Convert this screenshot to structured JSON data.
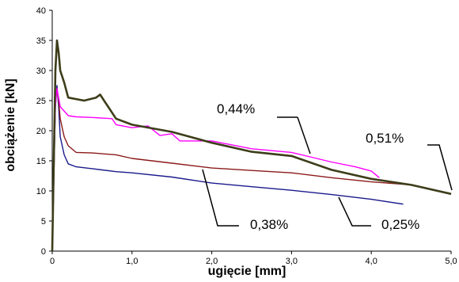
{
  "chart_data": {
    "type": "line",
    "title": "",
    "xlabel": "ugięcie [mm]",
    "ylabel": "obciążenie [kN]",
    "xlim": [
      0,
      5
    ],
    "ylim": [
      0,
      40
    ],
    "x_ticks": [
      "0",
      "1,0",
      "2,0",
      "3,0",
      "4,0",
      "5,0"
    ],
    "y_ticks": [
      "0",
      "5",
      "10",
      "15",
      "20",
      "25",
      "30",
      "35",
      "40"
    ],
    "grid": false,
    "legend": "none",
    "series": [
      {
        "name": "0,25%",
        "color": "#1a1a8c",
        "points": [
          [
            0,
            0
          ],
          [
            0.02,
            12
          ],
          [
            0.04,
            24
          ],
          [
            0.06,
            27.5
          ],
          [
            0.08,
            24
          ],
          [
            0.1,
            19
          ],
          [
            0.15,
            16
          ],
          [
            0.2,
            14.5
          ],
          [
            0.3,
            14
          ],
          [
            0.5,
            13.7
          ],
          [
            0.8,
            13.2
          ],
          [
            1.0,
            13
          ],
          [
            1.5,
            12.3
          ],
          [
            2.0,
            11.3
          ],
          [
            2.5,
            10.7
          ],
          [
            3.0,
            10.1
          ],
          [
            3.5,
            9.4
          ],
          [
            4.0,
            8.6
          ],
          [
            4.4,
            7.8
          ]
        ]
      },
      {
        "name": "0,38%",
        "color": "#8b1a1a",
        "points": [
          [
            0,
            0
          ],
          [
            0.02,
            15
          ],
          [
            0.04,
            25
          ],
          [
            0.06,
            27
          ],
          [
            0.08,
            25
          ],
          [
            0.1,
            22
          ],
          [
            0.15,
            19
          ],
          [
            0.2,
            17.5
          ],
          [
            0.3,
            16.4
          ],
          [
            0.5,
            16.3
          ],
          [
            0.8,
            16
          ],
          [
            1.0,
            15.4
          ],
          [
            1.5,
            14.6
          ],
          [
            2.0,
            13.8
          ],
          [
            2.5,
            13.4
          ],
          [
            3.0,
            13
          ],
          [
            3.5,
            12.2
          ],
          [
            4.0,
            11.5
          ],
          [
            4.5,
            11
          ],
          [
            5.0,
            9.5
          ]
        ]
      },
      {
        "name": "0,44%",
        "color": "#ff00ff",
        "points": [
          [
            0,
            0
          ],
          [
            0.02,
            14
          ],
          [
            0.04,
            24
          ],
          [
            0.06,
            27
          ],
          [
            0.1,
            24
          ],
          [
            0.2,
            22.5
          ],
          [
            0.3,
            22.3
          ],
          [
            0.5,
            22.2
          ],
          [
            0.75,
            22
          ],
          [
            0.8,
            21
          ],
          [
            1.0,
            20.5
          ],
          [
            1.2,
            20.8
          ],
          [
            1.35,
            19.2
          ],
          [
            1.5,
            19.5
          ],
          [
            1.6,
            18.3
          ],
          [
            2.0,
            18.3
          ],
          [
            2.5,
            17
          ],
          [
            3.0,
            16.4
          ],
          [
            3.5,
            14.8
          ],
          [
            3.8,
            14
          ],
          [
            4.0,
            13.3
          ],
          [
            4.1,
            12.2
          ]
        ]
      },
      {
        "name": "0,51%",
        "color": "#3d3d1a",
        "points": [
          [
            0,
            0
          ],
          [
            0.02,
            15
          ],
          [
            0.04,
            30
          ],
          [
            0.06,
            35
          ],
          [
            0.08,
            33
          ],
          [
            0.1,
            30
          ],
          [
            0.15,
            28
          ],
          [
            0.2,
            25.5
          ],
          [
            0.4,
            25
          ],
          [
            0.55,
            25.5
          ],
          [
            0.6,
            26
          ],
          [
            0.65,
            25
          ],
          [
            0.7,
            24
          ],
          [
            0.8,
            22
          ],
          [
            1.0,
            21
          ],
          [
            1.5,
            19.8
          ],
          [
            2.0,
            18
          ],
          [
            2.5,
            16.5
          ],
          [
            3.0,
            15.8
          ],
          [
            3.5,
            13.5
          ],
          [
            4.0,
            12
          ],
          [
            4.5,
            11
          ],
          [
            5.0,
            9.5
          ]
        ]
      }
    ],
    "annotations": [
      "0,44%",
      "0,51%",
      "0,38%",
      "0,25%"
    ]
  }
}
